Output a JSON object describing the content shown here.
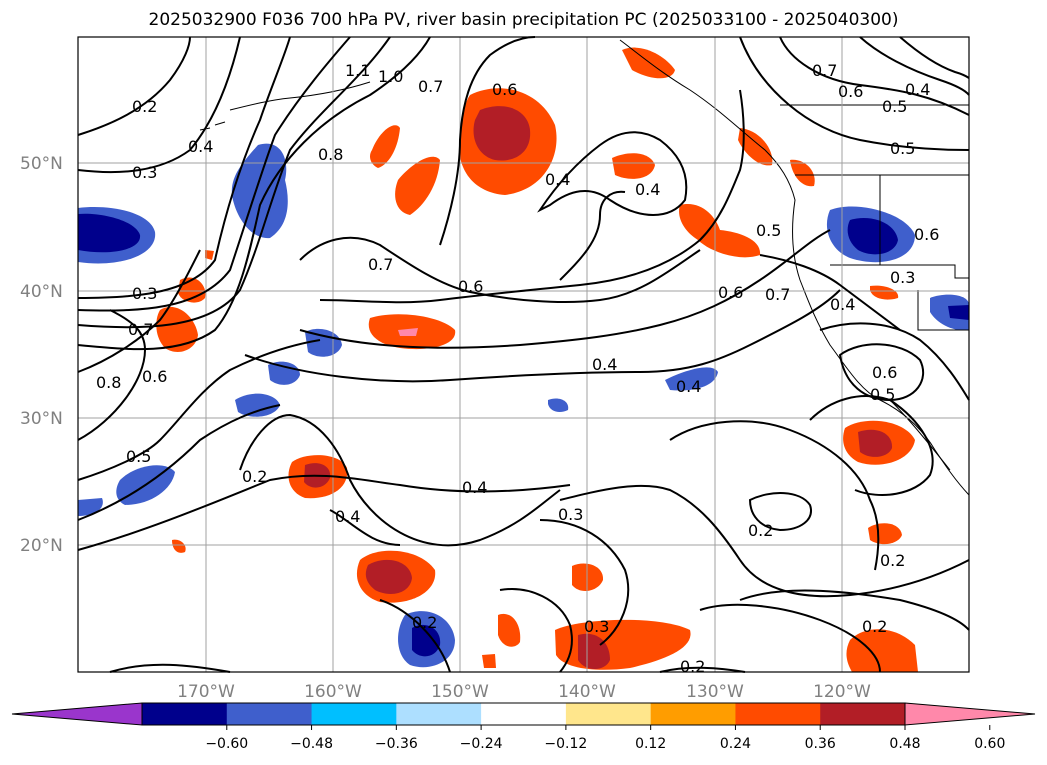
{
  "title": "2025032900 F036 700 hPa PV, river basin precipitation PC (2025033100 - 2025040300)",
  "map": {
    "lat_labels": [
      "50°N",
      "40°N",
      "30°N",
      "20°N"
    ],
    "lon_labels": [
      "170°W",
      "160°W",
      "150°W",
      "140°W",
      "130°W",
      "120°W"
    ],
    "contour_labels": [
      "0.2",
      "0.3",
      "0.4",
      "1.0",
      "1.1",
      "0.7",
      "0.6",
      "0.7",
      "0.6",
      "0.5",
      "0.4",
      "0.5",
      "0.8",
      "0.4",
      "0.4",
      "0.5",
      "0.7",
      "0.6",
      "0.3",
      "0.6",
      "0.7",
      "0.3",
      "0.7",
      "0.6",
      "0.4",
      "0.8",
      "0.6",
      "0.4",
      "0.4",
      "0.6",
      "0.5",
      "0.5",
      "0.2",
      "0.4",
      "0.4",
      "0.3",
      "0.2",
      "0.2",
      "0.2",
      "0.3",
      "0.2",
      "0.2"
    ]
  },
  "colorbar": {
    "ticks": [
      "−0.60",
      "−0.48",
      "−0.36",
      "−0.24",
      "−0.12",
      "0.12",
      "0.24",
      "0.36",
      "0.48",
      "0.60"
    ],
    "colors": [
      "#9a35cc",
      "#00008c",
      "#3f5fcc",
      "#00bfff",
      "#addfff",
      "#ffffff",
      "#ffe68c",
      "#ff9d00",
      "#ff4b00",
      "#b21e26",
      "#ff88aa"
    ]
  }
}
